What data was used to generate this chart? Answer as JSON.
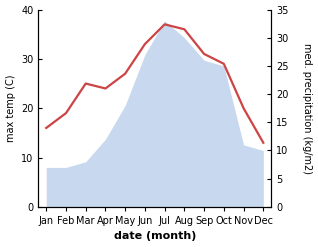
{
  "months": [
    "Jan",
    "Feb",
    "Mar",
    "Apr",
    "May",
    "Jun",
    "Jul",
    "Aug",
    "Sep",
    "Oct",
    "Nov",
    "Dec"
  ],
  "max_temp": [
    16,
    19,
    25,
    24,
    27,
    33,
    37,
    36,
    31,
    29,
    20,
    13
  ],
  "precipitation": [
    7,
    7,
    8,
    12,
    18,
    27,
    33,
    30,
    26,
    25,
    11,
    10
  ],
  "temp_color": "#cc4444",
  "precip_fill_color": "#c8d8ee",
  "precip_edge_color": "#c8d8ee",
  "ylabel_left": "max temp (C)",
  "ylabel_right": "med. precipitation (kg/m2)",
  "xlabel": "date (month)",
  "ylim_left": [
    0,
    40
  ],
  "ylim_right": [
    0,
    35
  ],
  "yticks_left": [
    0,
    10,
    20,
    30,
    40
  ],
  "yticks_right": [
    0,
    5,
    10,
    15,
    20,
    25,
    30,
    35
  ],
  "background_color": "#ffffff",
  "line_width": 1.6,
  "tick_fontsize": 7,
  "label_fontsize": 7,
  "xlabel_fontsize": 8
}
